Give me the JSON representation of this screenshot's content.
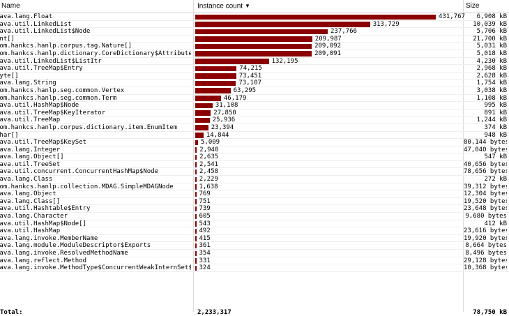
{
  "header": {
    "name_label": "Name",
    "count_label": "Instance count",
    "size_label": "Size",
    "sort_icon": "sort-descending-icon"
  },
  "colors": {
    "bar": "#8b0000"
  },
  "max_count": 431767,
  "rows": [
    {
      "name": "java.lang.Float",
      "count": 431767,
      "count_label": "431,767",
      "size": "6,908 kB"
    },
    {
      "name": "java.util.LinkedList",
      "count": 313729,
      "count_label": "313,729",
      "size": "10,039 kB"
    },
    {
      "name": "java.util.LinkedList$Node",
      "count": 237766,
      "count_label": "237,766",
      "size": "5,706 kB"
    },
    {
      "name": "int[]",
      "count": 209987,
      "count_label": "209,987",
      "size": "21,700 kB"
    },
    {
      "name": "com.hankcs.hanlp.corpus.tag.Nature[]",
      "count": 209092,
      "count_label": "209,092",
      "size": "5,031 kB"
    },
    {
      "name": "com.hankcs.hanlp.dictionary.CoreDictionary$Attribute",
      "count": 209091,
      "count_label": "209,091",
      "size": "5,018 kB"
    },
    {
      "name": "java.util.LinkedList$ListItr",
      "count": 132195,
      "count_label": "132,195",
      "size": "4,230 kB"
    },
    {
      "name": "java.util.TreeMap$Entry",
      "count": 74215,
      "count_label": "74,215",
      "size": "2,968 kB"
    },
    {
      "name": "byte[]",
      "count": 73451,
      "count_label": "73,451",
      "size": "2,628 kB"
    },
    {
      "name": "java.lang.String",
      "count": 73107,
      "count_label": "73,107",
      "size": "1,754 kB"
    },
    {
      "name": "com.hankcs.hanlp.seg.common.Vertex",
      "count": 63295,
      "count_label": "63,295",
      "size": "3,038 kB"
    },
    {
      "name": "com.hankcs.hanlp.seg.common.Term",
      "count": 46179,
      "count_label": "46,179",
      "size": "1,108 kB"
    },
    {
      "name": "java.util.HashMap$Node",
      "count": 31108,
      "count_label": "31,108",
      "size": "995 kB"
    },
    {
      "name": "java.util.TreeMap$KeyIterator",
      "count": 27850,
      "count_label": "27,850",
      "size": "891 kB"
    },
    {
      "name": "java.util.TreeMap",
      "count": 25936,
      "count_label": "25,936",
      "size": "1,244 kB"
    },
    {
      "name": "com.hankcs.hanlp.corpus.dictionary.item.EnumItem",
      "count": 23394,
      "count_label": "23,394",
      "size": "374 kB"
    },
    {
      "name": "char[]",
      "count": 14844,
      "count_label": "14,844",
      "size": "948 kB"
    },
    {
      "name": "java.util.TreeMap$KeySet",
      "count": 5009,
      "count_label": "5,009",
      "size": "80,144 bytes"
    },
    {
      "name": "java.lang.Integer",
      "count": 2940,
      "count_label": "2,940",
      "size": "47,040 bytes"
    },
    {
      "name": "java.lang.Object[]",
      "count": 2635,
      "count_label": "2,635",
      "size": "547 kB"
    },
    {
      "name": "java.util.TreeSet",
      "count": 2541,
      "count_label": "2,541",
      "size": "40,656 bytes"
    },
    {
      "name": "java.util.concurrent.ConcurrentHashMap$Node",
      "count": 2458,
      "count_label": "2,458",
      "size": "78,656 bytes"
    },
    {
      "name": "java.lang.Class",
      "count": 2229,
      "count_label": "2,229",
      "size": "272 kB"
    },
    {
      "name": "com.hankcs.hanlp.collection.MDAG.SimpleMDAGNode",
      "count": 1638,
      "count_label": "1,638",
      "size": "39,312 bytes"
    },
    {
      "name": "java.lang.Object",
      "count": 769,
      "count_label": "769",
      "size": "12,304 bytes"
    },
    {
      "name": "java.lang.Class[]",
      "count": 751,
      "count_label": "751",
      "size": "19,520 bytes"
    },
    {
      "name": "java.util.Hashtable$Entry",
      "count": 739,
      "count_label": "739",
      "size": "23,648 bytes"
    },
    {
      "name": "java.lang.Character",
      "count": 605,
      "count_label": "605",
      "size": "9,680 bytes"
    },
    {
      "name": "java.util.HashMap$Node[]",
      "count": 543,
      "count_label": "543",
      "size": "412 kB"
    },
    {
      "name": "java.util.HashMap",
      "count": 492,
      "count_label": "492",
      "size": "23,616 bytes"
    },
    {
      "name": "java.lang.invoke.MemberName",
      "count": 415,
      "count_label": "415",
      "size": "19,920 bytes"
    },
    {
      "name": "java.lang.module.ModuleDescriptor$Exports",
      "count": 361,
      "count_label": "361",
      "size": "8,664 bytes"
    },
    {
      "name": "java.lang.invoke.ResolvedMethodName",
      "count": 354,
      "count_label": "354",
      "size": "8,496 bytes"
    },
    {
      "name": "java.lang.reflect.Method",
      "count": 331,
      "count_label": "331",
      "size": "29,128 bytes"
    },
    {
      "name": "java.lang.invoke.MethodType$ConcurrentWeakInternSet$WeakEntry",
      "count": 324,
      "count_label": "324",
      "size": "10,368 bytes"
    }
  ],
  "total": {
    "label": "Total:",
    "count_label": "2,233,317",
    "size": "78,750 kB"
  }
}
